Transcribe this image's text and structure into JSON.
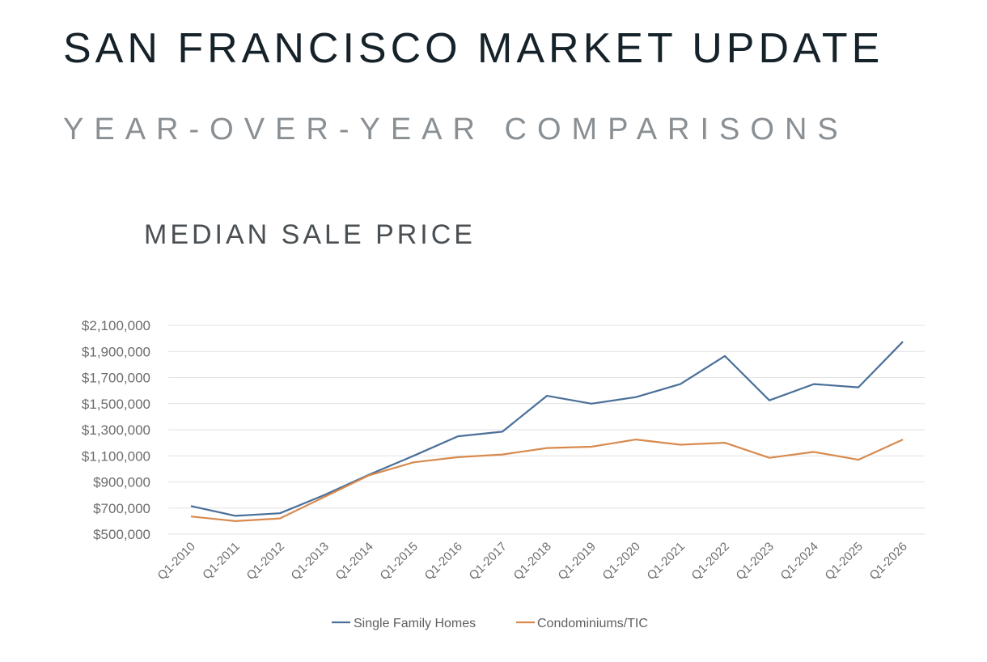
{
  "header": {
    "title": "SAN FRANCISCO MARKET UPDATE",
    "subtitle": "YEAR-OVER-YEAR COMPARISONS"
  },
  "colors": {
    "single_family": "#4a6f99",
    "condo": "#d88a4e"
  },
  "chart_data": {
    "type": "line",
    "title": "MEDIAN SALE PRICE",
    "xlabel": "",
    "ylabel": "",
    "categories": [
      "Q1-2010",
      "Q1-2011",
      "Q1-2012",
      "Q1-2013",
      "Q1-2014",
      "Q1-2015",
      "Q1-2016",
      "Q1-2017",
      "Q1-2018",
      "Q1-2019",
      "Q1-2020",
      "Q1-2021",
      "Q1-2022",
      "Q1-2023",
      "Q1-2024",
      "Q1-2025",
      "Q1-2026"
    ],
    "y_ticks": [
      500000,
      700000,
      900000,
      1100000,
      1300000,
      1500000,
      1700000,
      1900000,
      2100000
    ],
    "y_tick_labels": [
      "$500,000",
      "$700,000",
      "$900,000",
      "$1,100,000",
      "$1,300,000",
      "$1,500,000",
      "$1,700,000",
      "$1,900,000",
      "$2,100,000"
    ],
    "ylim": [
      500000,
      2100000
    ],
    "grid": true,
    "legend_position": "bottom",
    "series": [
      {
        "name": "Single Family Homes",
        "values": [
          715000,
          640000,
          660000,
          800000,
          955000,
          1100000,
          1250000,
          1285000,
          1560000,
          1500000,
          1550000,
          1650000,
          1865000,
          1525000,
          1650000,
          1625000,
          1975000
        ]
      },
      {
        "name": "Condominiums/TIC",
        "values": [
          635000,
          600000,
          620000,
          785000,
          950000,
          1050000,
          1090000,
          1110000,
          1160000,
          1170000,
          1225000,
          1185000,
          1200000,
          1085000,
          1130000,
          1070000,
          1225000
        ]
      }
    ]
  }
}
